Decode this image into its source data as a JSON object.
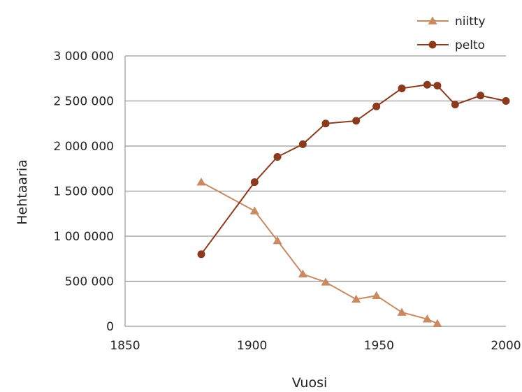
{
  "chart_data": {
    "type": "line",
    "xlabel": "Vuosi",
    "ylabel": "Hehtaaria",
    "xlim": [
      1850,
      2000
    ],
    "ylim": [
      0,
      3000000
    ],
    "x_ticks": [
      {
        "value": 1850,
        "label": "1850"
      },
      {
        "value": 1900,
        "label": "1900"
      },
      {
        "value": 1950,
        "label": "1950"
      },
      {
        "value": 2000,
        "label": "2000"
      }
    ],
    "y_ticks": [
      {
        "value": 0,
        "label": "0"
      },
      {
        "value": 500000,
        "label": "500 000"
      },
      {
        "value": 1000000,
        "label": "1 00 0000"
      },
      {
        "value": 1500000,
        "label": "1 500 000"
      },
      {
        "value": 2000000,
        "label": "2 000 000"
      },
      {
        "value": 2500000,
        "label": "2 500 000"
      },
      {
        "value": 3000000,
        "label": "3 000 000"
      }
    ],
    "grid": true,
    "legend_position": "top-right",
    "series": [
      {
        "name": "niitty",
        "color": "#C98A60",
        "marker": "triangle",
        "points": [
          {
            "x": 1880,
            "y": 1600000
          },
          {
            "x": 1901,
            "y": 1280000
          },
          {
            "x": 1910,
            "y": 950000
          },
          {
            "x": 1920,
            "y": 580000
          },
          {
            "x": 1929,
            "y": 490000
          },
          {
            "x": 1941,
            "y": 300000
          },
          {
            "x": 1949,
            "y": 340000
          },
          {
            "x": 1959,
            "y": 155000
          },
          {
            "x": 1969,
            "y": 80000
          },
          {
            "x": 1973,
            "y": 30000
          }
        ]
      },
      {
        "name": "pelto",
        "color": "#8B3A1E",
        "marker": "circle",
        "points": [
          {
            "x": 1880,
            "y": 800000
          },
          {
            "x": 1901,
            "y": 1600000
          },
          {
            "x": 1910,
            "y": 1880000
          },
          {
            "x": 1920,
            "y": 2020000
          },
          {
            "x": 1929,
            "y": 2250000
          },
          {
            "x": 1941,
            "y": 2280000
          },
          {
            "x": 1949,
            "y": 2440000
          },
          {
            "x": 1959,
            "y": 2640000
          },
          {
            "x": 1969,
            "y": 2680000
          },
          {
            "x": 1973,
            "y": 2670000
          },
          {
            "x": 1980,
            "y": 2460000
          },
          {
            "x": 1990,
            "y": 2560000
          },
          {
            "x": 2000,
            "y": 2500000
          }
        ]
      }
    ]
  }
}
